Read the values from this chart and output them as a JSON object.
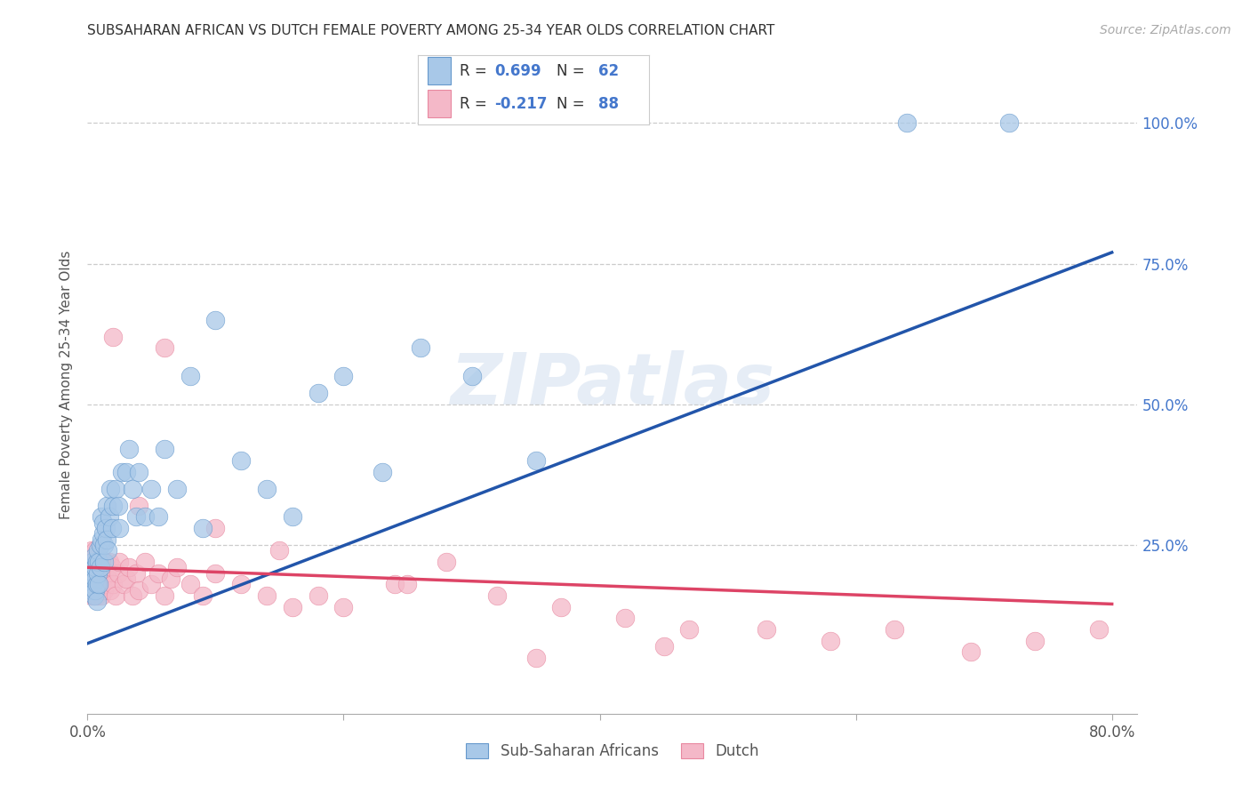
{
  "title": "SUBSAHARAN AFRICAN VS DUTCH FEMALE POVERTY AMONG 25-34 YEAR OLDS CORRELATION CHART",
  "source": "Source: ZipAtlas.com",
  "ylabel": "Female Poverty Among 25-34 Year Olds",
  "xlim": [
    0.0,
    0.82
  ],
  "ylim": [
    -0.05,
    1.12
  ],
  "ytick_labels_right": [
    "100.0%",
    "75.0%",
    "50.0%",
    "25.0%"
  ],
  "ytick_values_right": [
    1.0,
    0.75,
    0.5,
    0.25
  ],
  "blue_color": "#a8c8e8",
  "blue_edge_color": "#6699cc",
  "pink_color": "#f4b8c8",
  "pink_edge_color": "#e888a0",
  "blue_line_color": "#2255aa",
  "pink_line_color": "#dd4466",
  "watermark": "ZIPatlas",
  "blue_line_x0": 0.0,
  "blue_line_x1": 0.8,
  "blue_line_y0": 0.075,
  "blue_line_y1": 0.77,
  "pink_line_x0": 0.0,
  "pink_line_x1": 0.8,
  "pink_line_y0": 0.21,
  "pink_line_y1": 0.145,
  "blue_scatter_x": [
    0.002,
    0.003,
    0.003,
    0.004,
    0.004,
    0.005,
    0.005,
    0.005,
    0.006,
    0.006,
    0.006,
    0.007,
    0.007,
    0.007,
    0.008,
    0.008,
    0.009,
    0.009,
    0.01,
    0.01,
    0.011,
    0.011,
    0.012,
    0.012,
    0.013,
    0.013,
    0.014,
    0.015,
    0.015,
    0.016,
    0.017,
    0.018,
    0.019,
    0.02,
    0.022,
    0.024,
    0.025,
    0.027,
    0.03,
    0.032,
    0.035,
    0.038,
    0.04,
    0.045,
    0.05,
    0.055,
    0.06,
    0.07,
    0.08,
    0.09,
    0.1,
    0.12,
    0.14,
    0.16,
    0.18,
    0.2,
    0.23,
    0.26,
    0.3,
    0.35,
    0.64,
    0.72
  ],
  "blue_scatter_y": [
    0.19,
    0.17,
    0.21,
    0.18,
    0.22,
    0.16,
    0.2,
    0.23,
    0.19,
    0.21,
    0.17,
    0.22,
    0.18,
    0.15,
    0.24,
    0.2,
    0.22,
    0.18,
    0.25,
    0.21,
    0.3,
    0.26,
    0.27,
    0.29,
    0.22,
    0.25,
    0.28,
    0.26,
    0.32,
    0.24,
    0.3,
    0.35,
    0.28,
    0.32,
    0.35,
    0.32,
    0.28,
    0.38,
    0.38,
    0.42,
    0.35,
    0.3,
    0.38,
    0.3,
    0.35,
    0.3,
    0.42,
    0.35,
    0.55,
    0.28,
    0.65,
    0.4,
    0.35,
    0.3,
    0.52,
    0.55,
    0.38,
    0.6,
    0.55,
    0.4,
    1.0,
    1.0
  ],
  "pink_scatter_x": [
    0.001,
    0.001,
    0.002,
    0.002,
    0.002,
    0.003,
    0.003,
    0.003,
    0.003,
    0.004,
    0.004,
    0.004,
    0.005,
    0.005,
    0.005,
    0.005,
    0.006,
    0.006,
    0.006,
    0.007,
    0.007,
    0.007,
    0.007,
    0.008,
    0.008,
    0.008,
    0.009,
    0.009,
    0.01,
    0.01,
    0.01,
    0.011,
    0.011,
    0.012,
    0.012,
    0.013,
    0.013,
    0.014,
    0.014,
    0.015,
    0.016,
    0.017,
    0.018,
    0.019,
    0.02,
    0.022,
    0.024,
    0.025,
    0.028,
    0.03,
    0.032,
    0.035,
    0.038,
    0.04,
    0.045,
    0.05,
    0.055,
    0.06,
    0.065,
    0.07,
    0.08,
    0.09,
    0.1,
    0.12,
    0.14,
    0.16,
    0.18,
    0.2,
    0.24,
    0.28,
    0.32,
    0.37,
    0.42,
    0.47,
    0.53,
    0.58,
    0.63,
    0.69,
    0.74,
    0.79,
    0.02,
    0.04,
    0.06,
    0.1,
    0.15,
    0.25,
    0.35,
    0.45
  ],
  "pink_scatter_y": [
    0.19,
    0.22,
    0.2,
    0.17,
    0.23,
    0.18,
    0.21,
    0.16,
    0.24,
    0.2,
    0.22,
    0.17,
    0.19,
    0.22,
    0.16,
    0.18,
    0.2,
    0.24,
    0.17,
    0.21,
    0.19,
    0.22,
    0.16,
    0.2,
    0.23,
    0.18,
    0.21,
    0.17,
    0.2,
    0.22,
    0.18,
    0.21,
    0.16,
    0.22,
    0.19,
    0.17,
    0.21,
    0.22,
    0.18,
    0.2,
    0.19,
    0.22,
    0.17,
    0.21,
    0.18,
    0.16,
    0.2,
    0.22,
    0.18,
    0.19,
    0.21,
    0.16,
    0.2,
    0.17,
    0.22,
    0.18,
    0.2,
    0.16,
    0.19,
    0.21,
    0.18,
    0.16,
    0.2,
    0.18,
    0.16,
    0.14,
    0.16,
    0.14,
    0.18,
    0.22,
    0.16,
    0.14,
    0.12,
    0.1,
    0.1,
    0.08,
    0.1,
    0.06,
    0.08,
    0.1,
    0.62,
    0.32,
    0.6,
    0.28,
    0.24,
    0.18,
    0.05,
    0.07
  ],
  "background_color": "#ffffff",
  "grid_color": "#cccccc",
  "title_color": "#333333",
  "axis_label_color": "#555555",
  "legend_r_color_blue": "#4477cc",
  "legend_r_color_pink": "#4477cc",
  "legend_n_color_blue": "#4477cc",
  "legend_n_color_pink": "#4477cc"
}
